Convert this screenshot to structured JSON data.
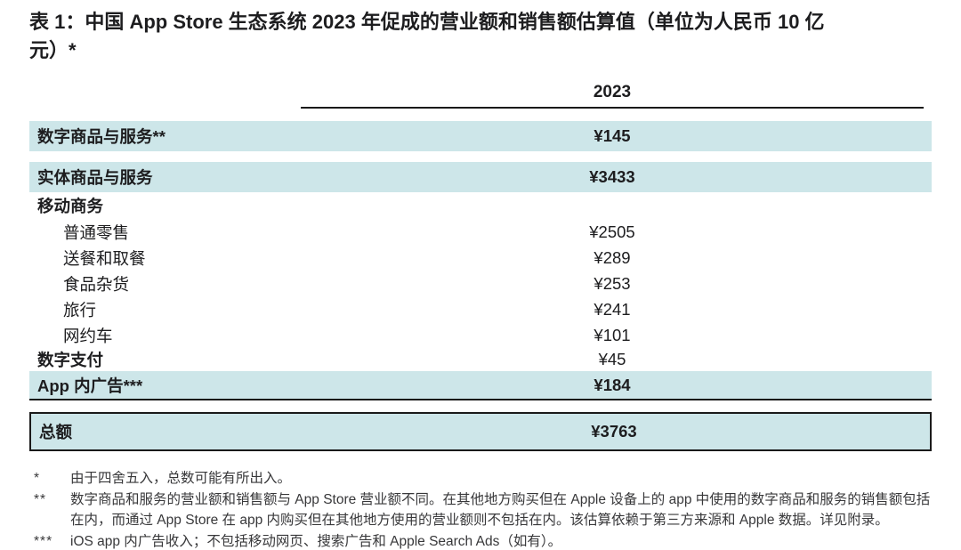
{
  "title": {
    "line1": "表 1：中国 App Store 生态系统 2023 年促成的营业额和销售额估算值（单位为人民币 10 亿",
    "line2": "元）*"
  },
  "table": {
    "year_header": "2023",
    "rows": [
      {
        "label": "数字商品与服务**",
        "value": "¥145"
      },
      {
        "label": "实体商品与服务",
        "value": "¥3433"
      },
      {
        "label": "移动商务",
        "value": ""
      },
      {
        "label": "普通零售",
        "value": "¥2505"
      },
      {
        "label": "送餐和取餐",
        "value": "¥289"
      },
      {
        "label": "食品杂货",
        "value": "¥253"
      },
      {
        "label": "旅行",
        "value": "¥241"
      },
      {
        "label": "网约车",
        "value": "¥101"
      },
      {
        "label": "数字支付",
        "value": "¥45"
      },
      {
        "label": "App 内广告***",
        "value": "¥184"
      }
    ],
    "total_row": {
      "label": "总额",
      "value": "¥3763"
    }
  },
  "footnotes": [
    {
      "marker": "*",
      "text": "由于四舍五入，总数可能有所出入。"
    },
    {
      "marker": "**",
      "text": "数字商品和服务的营业额和销售额与 App Store 营业额不同。在其他地方购买但在 Apple 设备上的 app 中使用的数字商品和服务的销售额包括在内，而通过 App Store 在 app 内购买但在其他地方使用的营业额则不包括在内。该估算依赖于第三方来源和 Apple 数据。详见附录。"
    },
    {
      "marker": "***",
      "text": "iOS app 内广告收入；不包括移动网页、搜索广告和 Apple Search Ads（如有）。"
    }
  ],
  "colors": {
    "row_highlight": "#cde6e9",
    "text_primary": "#1d1d1f",
    "rule": "#1a1a1a"
  }
}
